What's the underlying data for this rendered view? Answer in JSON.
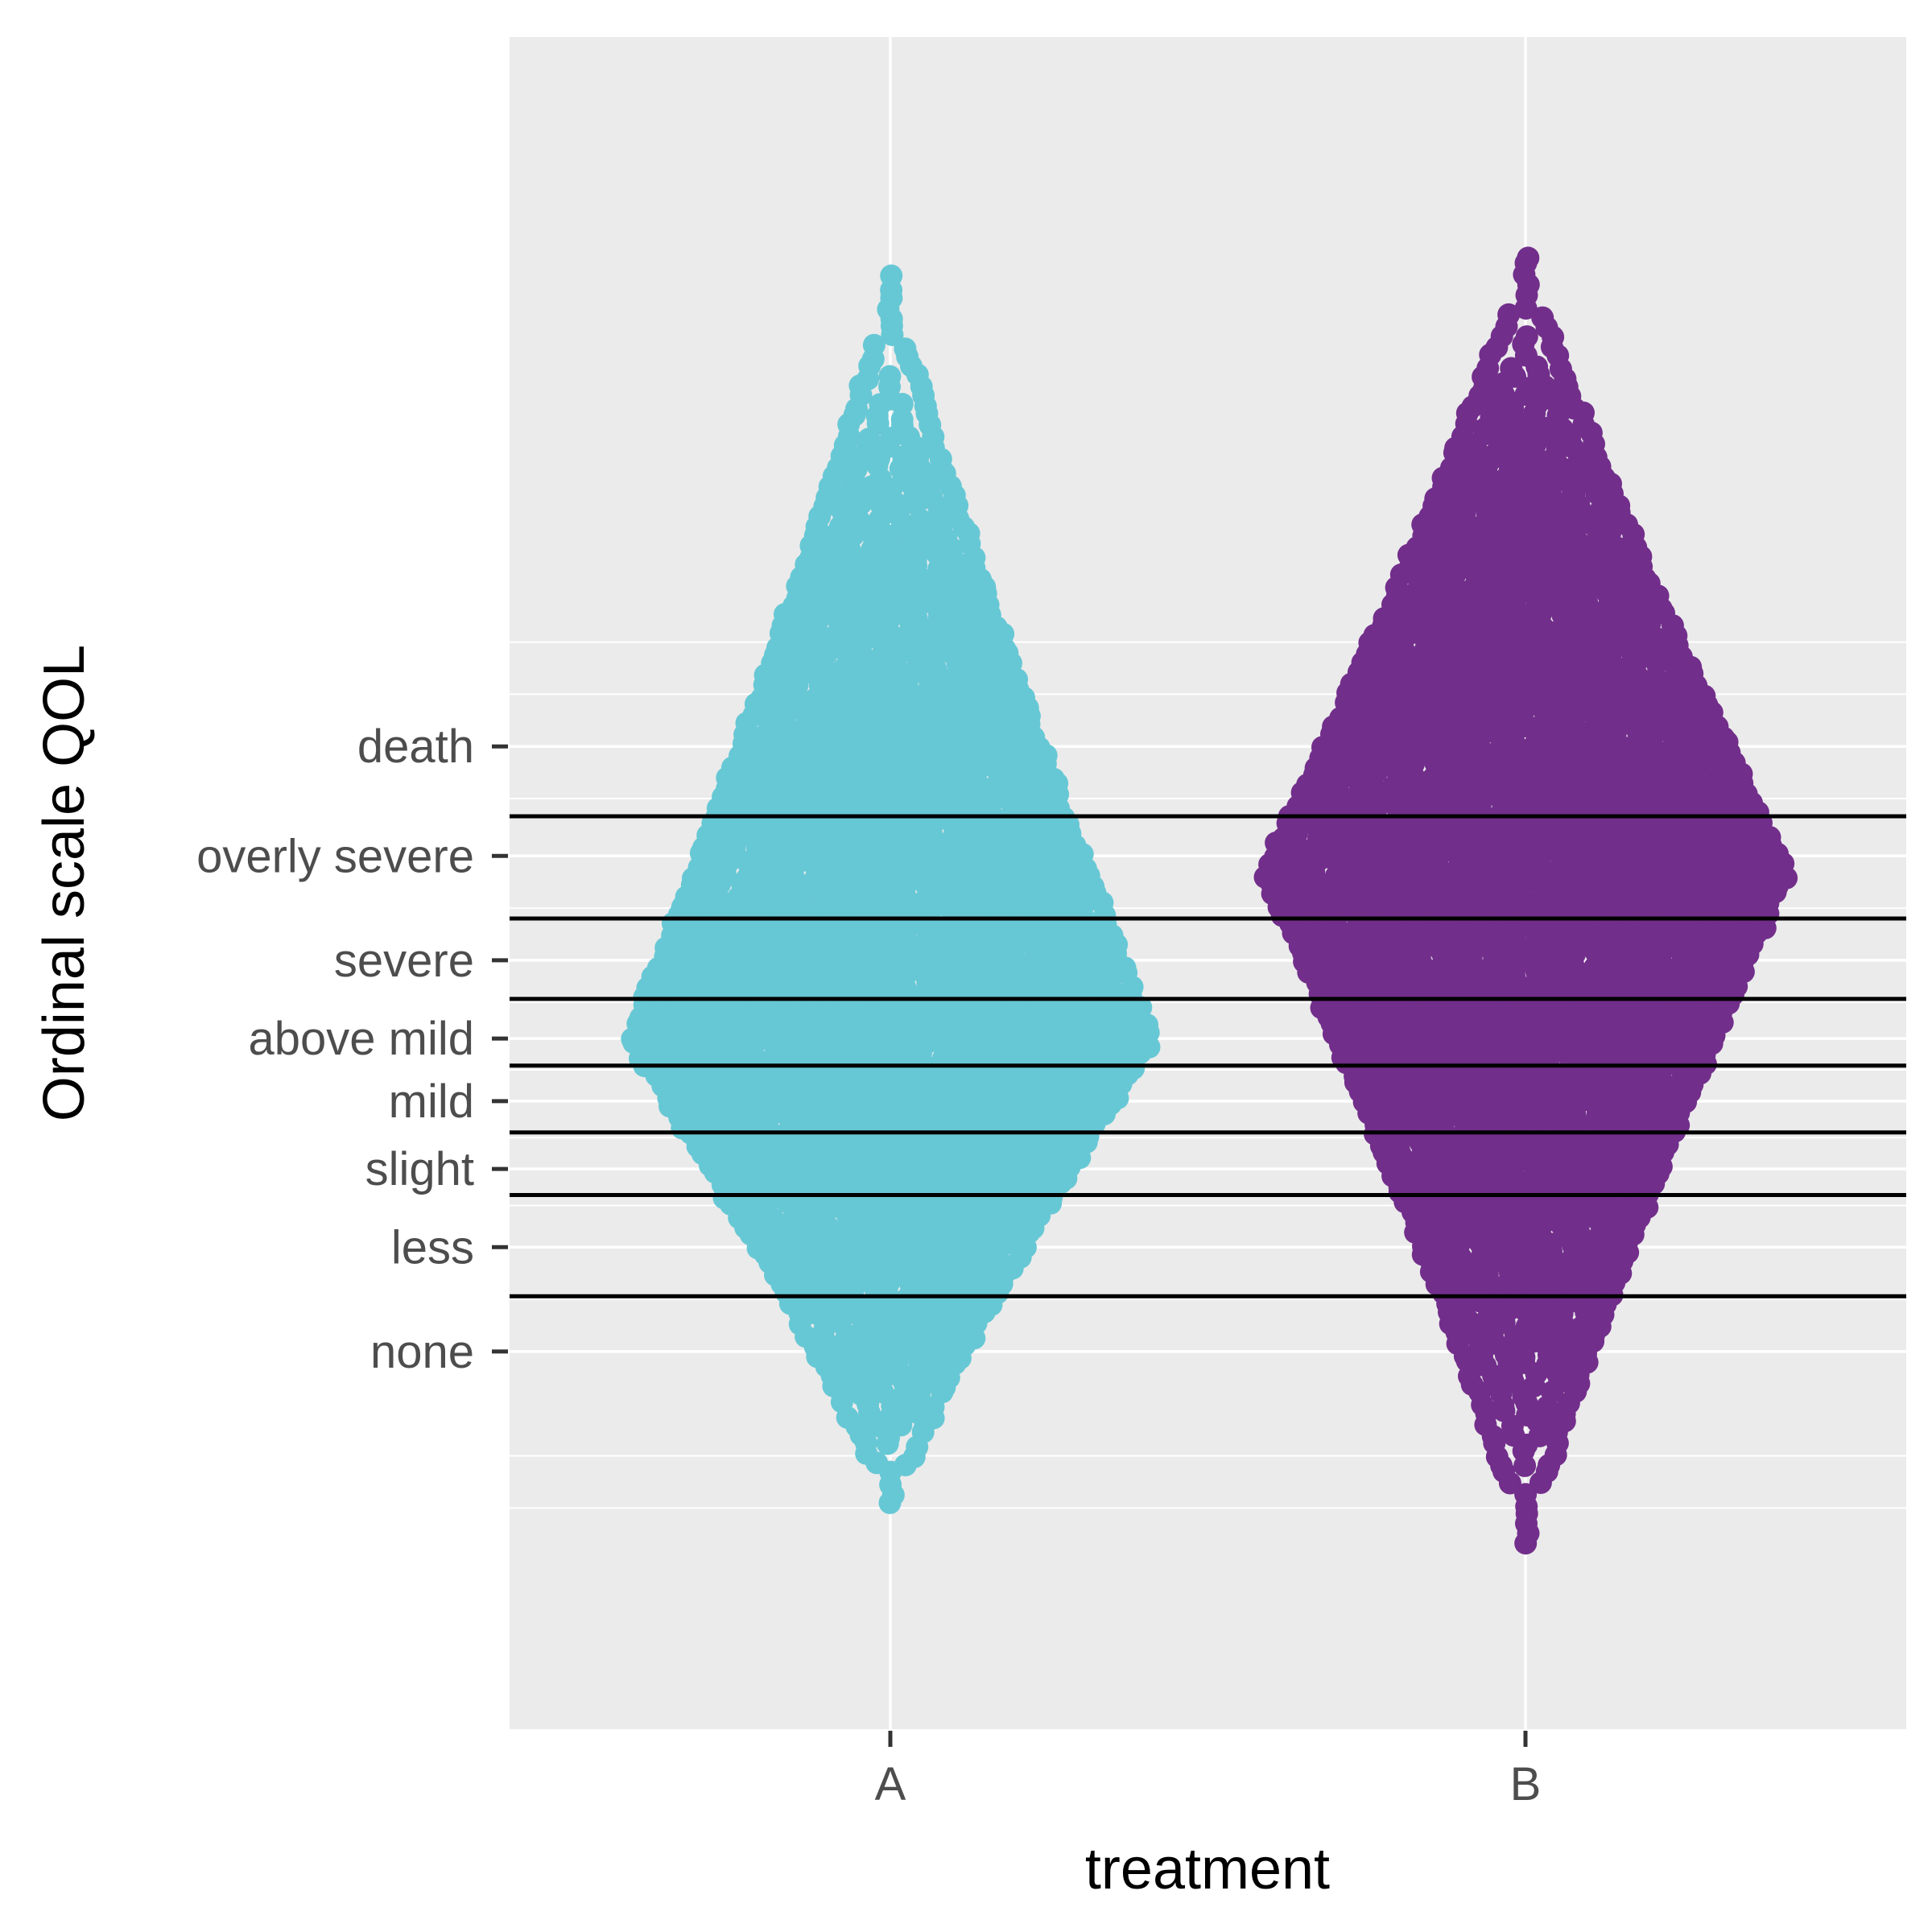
{
  "chart_data": {
    "type": "beeswarm",
    "xlabel": "treatment",
    "ylabel": "Ordinal scale QOL",
    "categories": [
      "A",
      "B"
    ],
    "y_levels": [
      "none",
      "less",
      "slight",
      "mild",
      "above mild",
      "severe",
      "overly severe",
      "death"
    ],
    "y_level_positions": [
      1.0,
      2.0,
      2.75,
      3.4,
      4.0,
      4.75,
      5.75,
      6.8
    ],
    "ylim": [
      -2.62,
      13.6
    ],
    "cutpoints": [
      1.53,
      2.5,
      3.1,
      3.74,
      4.38,
      5.15,
      6.13
    ],
    "grid": true,
    "colors": {
      "A": "#67c8d5",
      "B": "#722e8b",
      "panel": "#ebebeb",
      "gridline": "#ffffff",
      "cutline": "#000000"
    },
    "series": [
      {
        "name": "A",
        "approx_center_y": 4.0,
        "y_min": -0.5,
        "y_max": 11.3,
        "max_half_width_x": 0.41
      },
      {
        "name": "B",
        "approx_center_y": 5.6,
        "y_min": -0.9,
        "y_max": 11.5,
        "max_half_width_x": 0.41
      }
    ]
  }
}
